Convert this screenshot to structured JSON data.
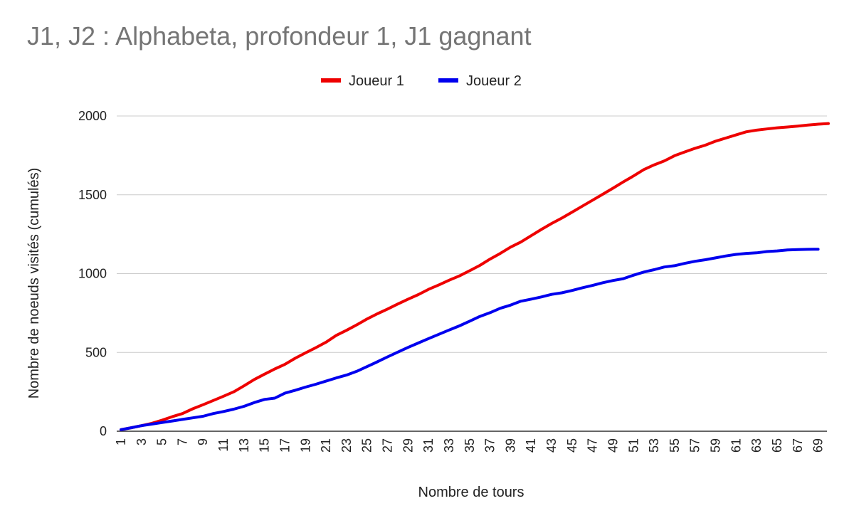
{
  "chart_data": {
    "type": "line",
    "title": "J1, J2 : Alphabeta, profondeur 1, J1 gagnant",
    "xlabel": "Nombre de tours",
    "ylabel": "Nombre de noeuds visités (cumulés)",
    "ylim": [
      0,
      2000
    ],
    "yticks": [
      "0",
      "500",
      "1000",
      "1500",
      "2000"
    ],
    "xticks": [
      "1",
      "3",
      "5",
      "7",
      "9",
      "11",
      "13",
      "15",
      "17",
      "19",
      "21",
      "23",
      "25",
      "27",
      "29",
      "31",
      "33",
      "35",
      "37",
      "39",
      "41",
      "43",
      "45",
      "47",
      "49",
      "51",
      "53",
      "55",
      "57",
      "59",
      "61",
      "63",
      "65",
      "67",
      "69"
    ],
    "grid": true,
    "legend_position": "top",
    "series": [
      {
        "name": "Joueur 1",
        "color": "#ee0000",
        "values": [
          10,
          22,
          35,
          50,
          70,
          92,
          112,
          142,
          168,
          195,
          222,
          250,
          288,
          328,
          362,
          395,
          425,
          463,
          497,
          530,
          565,
          608,
          640,
          675,
          712,
          745,
          775,
          807,
          838,
          867,
          900,
          928,
          958,
          985,
          1018,
          1052,
          1092,
          1128,
          1168,
          1200,
          1240,
          1280,
          1318,
          1352,
          1390,
          1428,
          1466,
          1504,
          1542,
          1582,
          1620,
          1660,
          1690,
          1715,
          1748,
          1772,
          1795,
          1815,
          1840,
          1860,
          1880,
          1900,
          1910,
          1918,
          1925,
          1930,
          1936,
          1942,
          1948,
          1952
        ]
      },
      {
        "name": "Joueur 2",
        "color": "#0000ee",
        "values": [
          10,
          22,
          35,
          45,
          55,
          65,
          75,
          85,
          95,
          112,
          125,
          140,
          158,
          182,
          202,
          210,
          242,
          260,
          280,
          298,
          318,
          338,
          356,
          380,
          410,
          440,
          472,
          502,
          532,
          560,
          588,
          615,
          642,
          668,
          698,
          728,
          752,
          780,
          800,
          825,
          838,
          852,
          868,
          878,
          893,
          910,
          925,
          942,
          956,
          968,
          990,
          1010,
          1025,
          1042,
          1050,
          1065,
          1078,
          1088,
          1100,
          1112,
          1122,
          1128,
          1132,
          1140,
          1144,
          1150,
          1152,
          1154,
          1155
        ]
      }
    ]
  }
}
